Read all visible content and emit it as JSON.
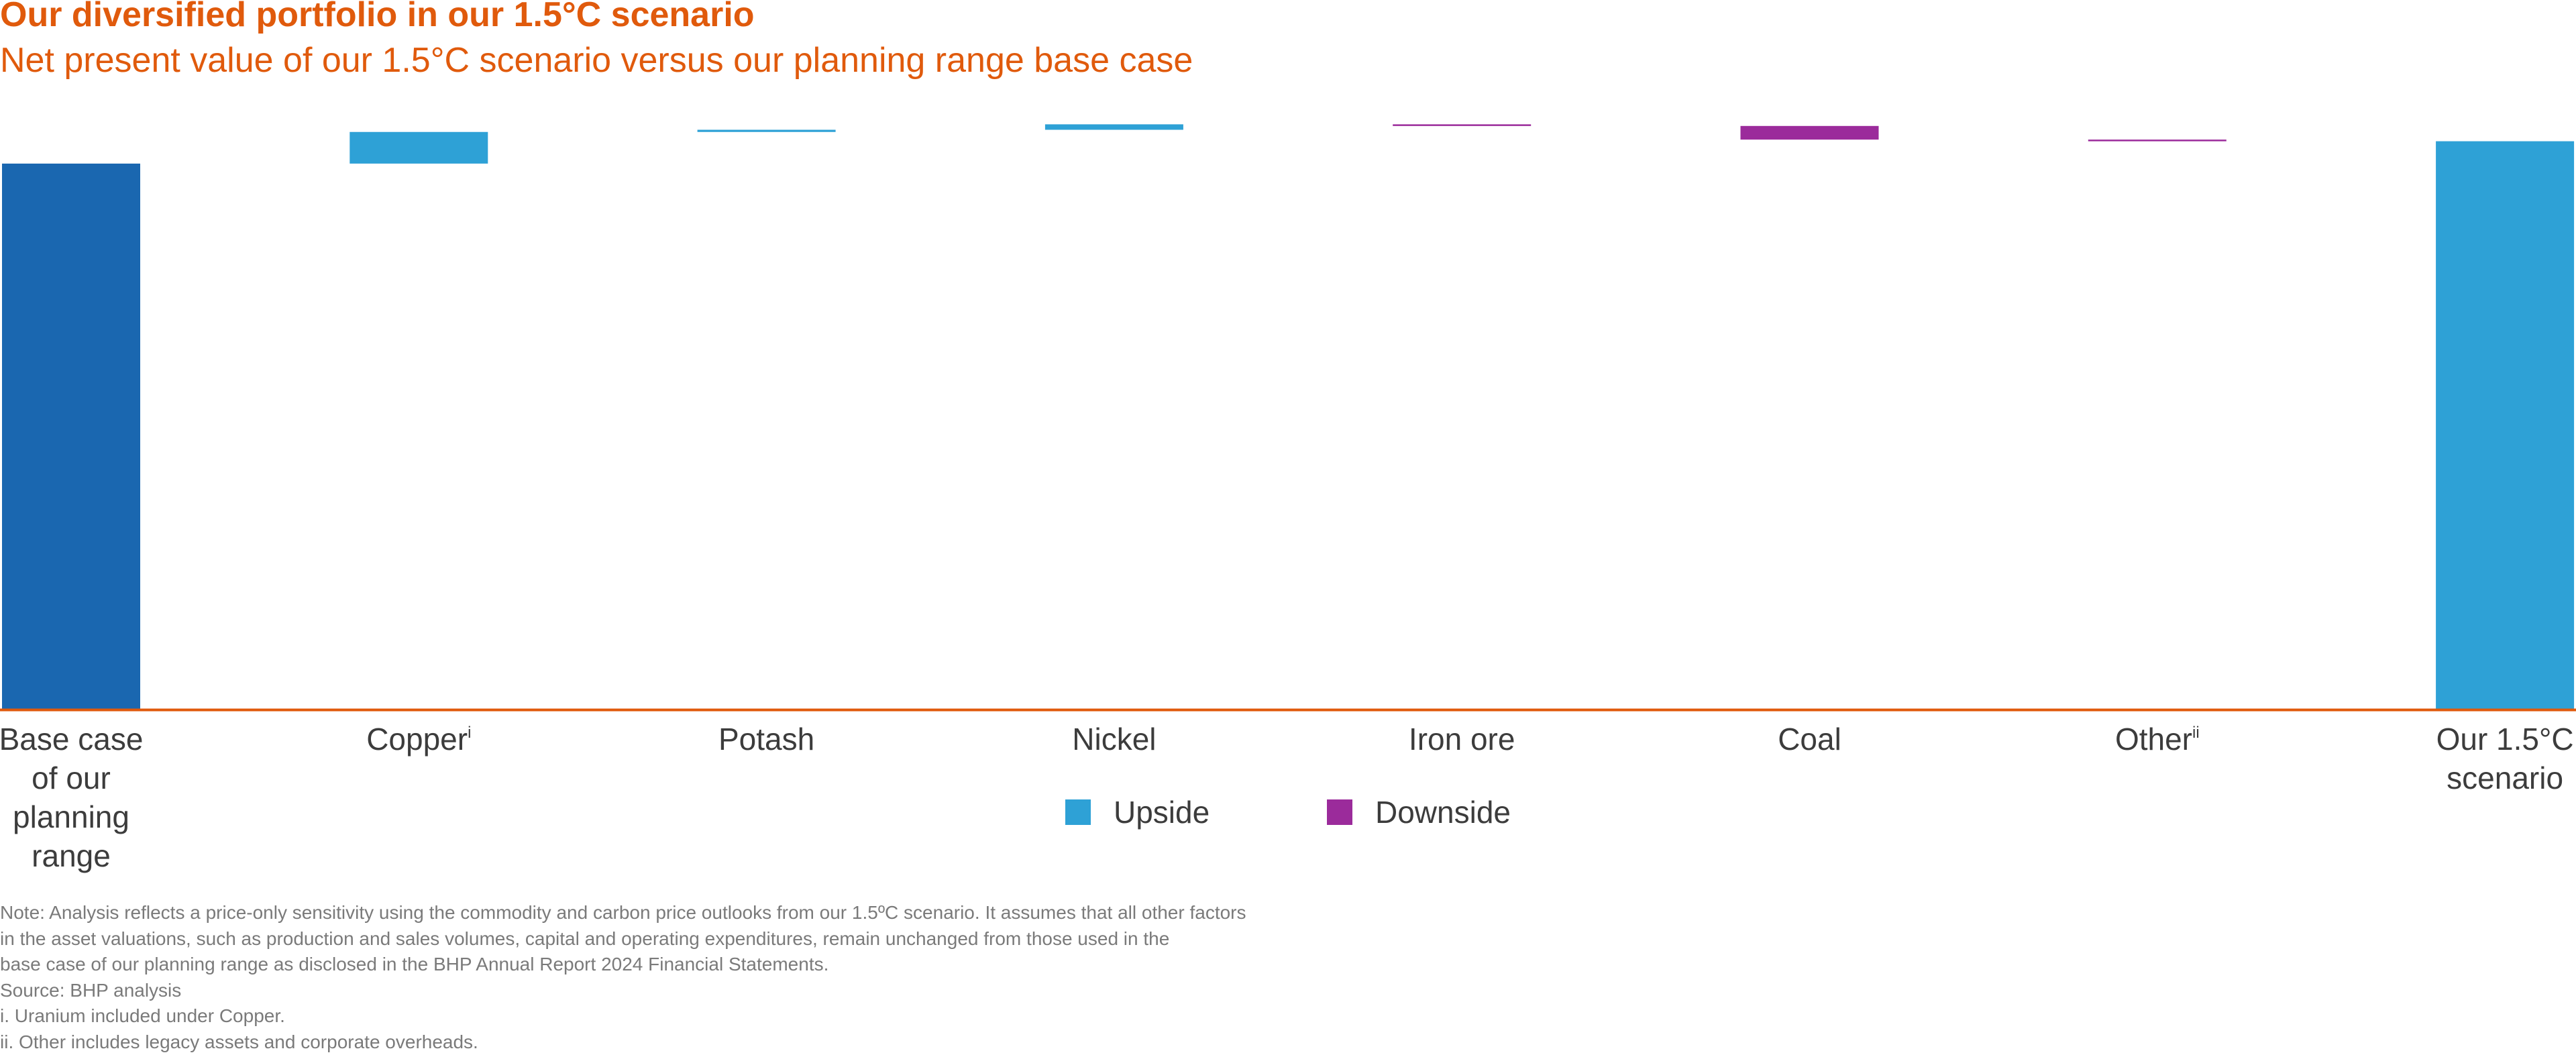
{
  "title": "Our diversified portfolio in our 1.5°C scenario",
  "subtitle": "Net present value of our 1.5°C scenario versus our planning range base case",
  "colors": {
    "title": "#e05a0c",
    "base": "#1a67b0",
    "upside": "#2ea1d6",
    "downside": "#9b2b9b",
    "axis": "#e05a0c",
    "text": "#3c3c3c",
    "note": "#7a7a7a"
  },
  "chart_data": {
    "type": "bar",
    "subtype": "waterfall",
    "categories": [
      "Base case of our planning range",
      "Copper",
      "Potash",
      "Nickel",
      "Iron ore",
      "Coal",
      "Other",
      "Our 1.5°C scenario"
    ],
    "category_lines": [
      [
        "Base case",
        "of our",
        "planning",
        "range"
      ],
      [
        "Copper"
      ],
      [
        "Potash"
      ],
      [
        "Nickel"
      ],
      [
        "Iron ore"
      ],
      [
        "Coal"
      ],
      [
        "Other"
      ],
      [
        "Our 1.5°C",
        "scenario"
      ]
    ],
    "superscripts": [
      "",
      "i",
      "",
      "",
      "",
      "",
      "ii",
      ""
    ],
    "kinds": [
      "total",
      "change",
      "change",
      "change",
      "change",
      "change",
      "change",
      "total"
    ],
    "values": [
      100,
      5.8,
      0.4,
      1.0,
      -0.3,
      -2.5,
      -0.3,
      104.1
    ],
    "legend": [
      {
        "label": "Upside",
        "key": "upside"
      },
      {
        "label": "Downside",
        "key": "downside"
      }
    ],
    "legend_position": "bottom-center",
    "ylim": [
      0,
      107
    ],
    "grid": false,
    "yaxis_visible": false
  },
  "notes": {
    "note": [
      "Note: Analysis reflects a price-only sensitivity using the commodity and carbon price outlooks from our 1.5ºC scenario. It assumes that all other factors",
      "in the asset valuations, such as production and sales volumes, capital and operating expenditures, remain unchanged from those used in the",
      "base case of our planning range as disclosed in the BHP Annual Report 2024 Financial Statements."
    ],
    "source": "Source: BHP analysis",
    "footnote_i": "i.  Uranium included under Copper.",
    "footnote_ii": "ii.  Other includes legacy assets and corporate overheads."
  }
}
